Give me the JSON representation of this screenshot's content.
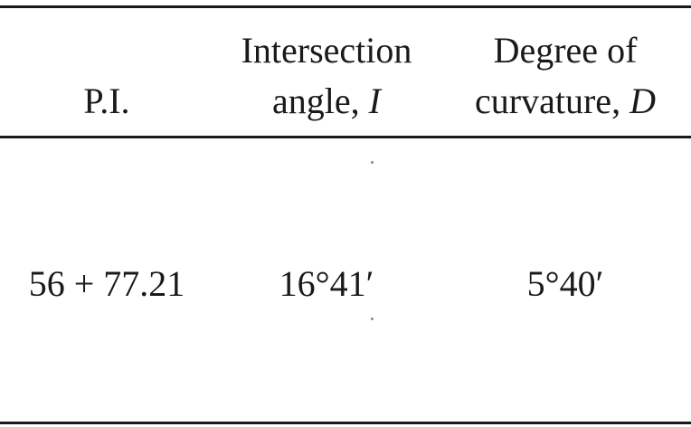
{
  "table": {
    "headers": {
      "pi": "P.I.",
      "intersection_angle": {
        "line1": "Intersection",
        "line2_text": "angle, ",
        "line2_symbol": "I"
      },
      "degree_of_curvature": {
        "line1": "Degree of",
        "line2_text": "curvature, ",
        "line2_symbol": "D"
      }
    },
    "rows": [
      {
        "pi": "56 + 77.21",
        "intersection_angle": "16°41′",
        "degree_of_curvature": "5°40′"
      }
    ]
  }
}
